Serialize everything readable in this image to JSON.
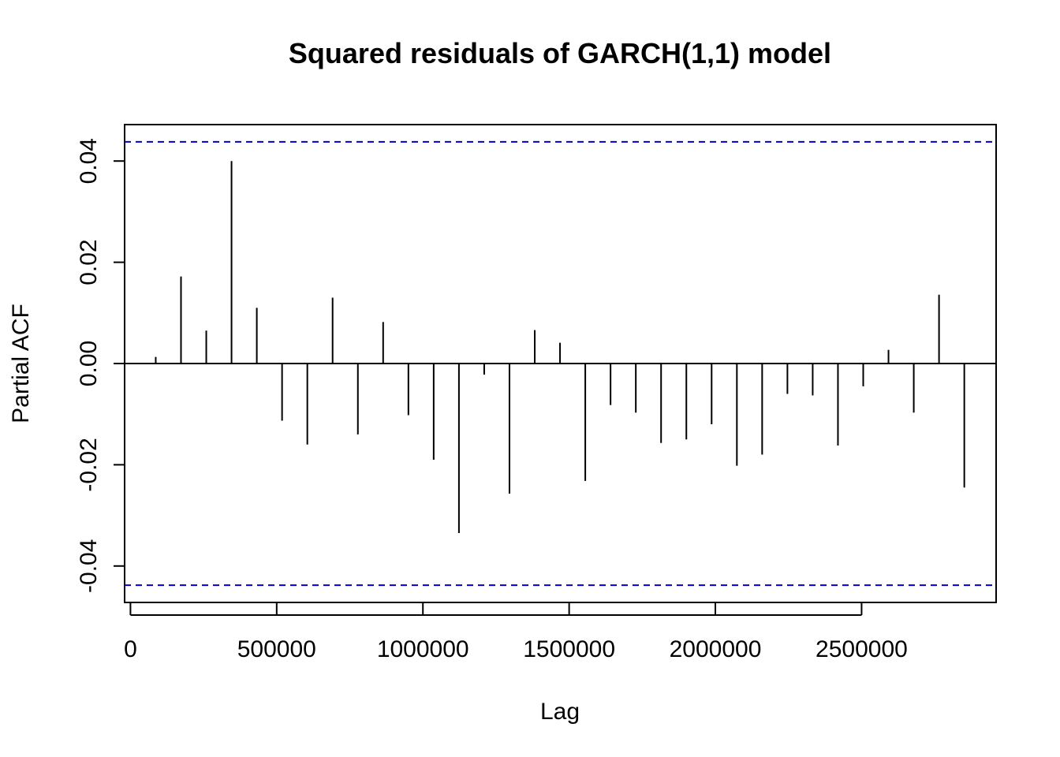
{
  "chart_data": {
    "type": "bar",
    "title": "Squared residuals of GARCH(1,1) model",
    "xlabel": "Lag",
    "ylabel": "Partial ACF",
    "xlim": [
      -20000,
      2960000
    ],
    "ylim": [
      -0.0472,
      0.0472
    ],
    "x_ticks": [
      0,
      500000,
      1000000,
      1500000,
      2000000,
      2500000
    ],
    "x_tick_labels": [
      "0",
      "500000",
      "1000000",
      "1500000",
      "2000000",
      "2500000"
    ],
    "y_ticks": [
      -0.04,
      -0.02,
      0.0,
      0.02,
      0.04
    ],
    "y_tick_labels": [
      "-0.04",
      "-0.02",
      "0.00",
      "0.02",
      "0.04"
    ],
    "confidence_bound": 0.0438,
    "confidence_color": "#0000cc",
    "bar_color": "#000000",
    "x": [
      86400,
      172800,
      259200,
      345600,
      432000,
      518400,
      604800,
      691200,
      777600,
      864000,
      950400,
      1036800,
      1123200,
      1209600,
      1296000,
      1382400,
      1468800,
      1555200,
      1641600,
      1728000,
      1814400,
      1900800,
      1987200,
      2073600,
      2160000,
      2246400,
      2332800,
      2419200,
      2505600,
      2592000,
      2678400,
      2764800,
      2851200
    ],
    "values": [
      0.0013,
      0.0172,
      0.0065,
      0.04,
      0.011,
      -0.0113,
      -0.016,
      0.013,
      -0.014,
      0.0082,
      -0.0102,
      -0.019,
      -0.0335,
      -0.0022,
      -0.0257,
      0.0066,
      0.0041,
      -0.0232,
      -0.0082,
      -0.0097,
      -0.0157,
      -0.015,
      -0.012,
      -0.0202,
      -0.018,
      -0.006,
      -0.0063,
      -0.0162,
      -0.0045,
      0.0027,
      -0.0097,
      0.0136,
      -0.0245
    ]
  }
}
